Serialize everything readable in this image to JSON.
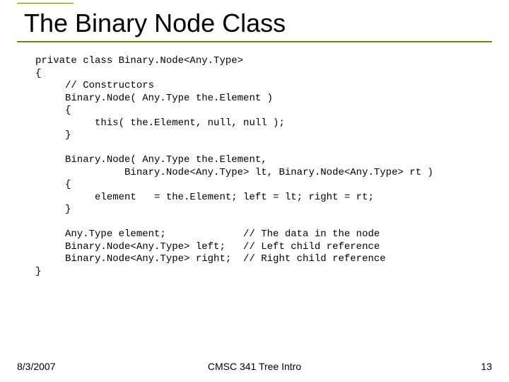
{
  "slide": {
    "title": "The Binary Node Class",
    "code": "private class Binary.Node<Any.Type>\n{\n     // Constructors\n     Binary.Node( Any.Type the.Element )\n     {\n          this( the.Element, null, null );\n     }\n\n     Binary.Node( Any.Type the.Element,\n               Binary.Node<Any.Type> lt, Binary.Node<Any.Type> rt )\n     {\n          element   = the.Element; left = lt; right = rt;\n     }\n\n     Any.Type element;             // The data in the node\n     Binary.Node<Any.Type> left;   // Left child reference\n     Binary.Node<Any.Type> right;  // Right child reference\n}",
    "footer": {
      "date": "8/3/2007",
      "course": "CMSC 341 Tree Intro",
      "page": "13"
    },
    "colors": {
      "accent": "#808000",
      "text": "#000000",
      "background": "#ffffff"
    }
  }
}
